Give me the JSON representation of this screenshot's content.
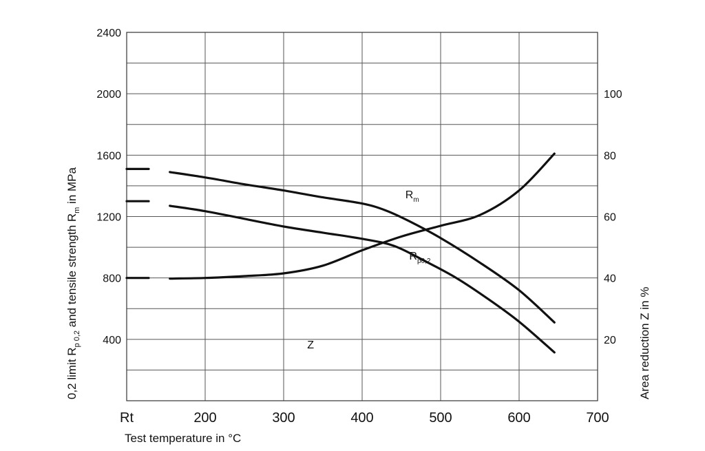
{
  "chart_data": {
    "type": "line",
    "title": "",
    "xlabel": "Test temperature in °C",
    "ylabel_left": "0,2 limit R p 0,2 and tensile strength R m in MPa",
    "ylabel_left_parts": {
      "a": "0,2 limit R",
      "a_sub": "p 0,2",
      "b": " and tensile strength R",
      "b_sub": "m",
      "c": " in MPa"
    },
    "ylabel_right": "Area reduction Z in %",
    "xlim": [
      100,
      700
    ],
    "ylim_left": [
      0,
      2400
    ],
    "ylim_right": [
      0,
      120
    ],
    "x_ticks": [
      {
        "value": 100,
        "label": "Rt"
      },
      {
        "value": 200,
        "label": "200"
      },
      {
        "value": 300,
        "label": "300"
      },
      {
        "value": 400,
        "label": "400"
      },
      {
        "value": 500,
        "label": "500"
      },
      {
        "value": 600,
        "label": "600"
      },
      {
        "value": 700,
        "label": "700"
      }
    ],
    "y_ticks_left": [
      {
        "value": 400,
        "label": "400"
      },
      {
        "value": 800,
        "label": "800"
      },
      {
        "value": 1200,
        "label": "1200"
      },
      {
        "value": 1600,
        "label": "1600"
      },
      {
        "value": 2000,
        "label": "2000"
      },
      {
        "value": 2400,
        "label": "2400"
      }
    ],
    "y_ticks_right": [
      {
        "value": 20,
        "label": "20"
      },
      {
        "value": 40,
        "label": "40"
      },
      {
        "value": 60,
        "label": "60"
      },
      {
        "value": 80,
        "label": "80"
      },
      {
        "value": 100,
        "label": "100"
      }
    ],
    "grid": true,
    "series": [
      {
        "name": "R",
        "label_sub": "m",
        "axis": "left",
        "rt_value": 1510,
        "x": [
          155,
          200,
          250,
          300,
          350,
          400,
          430,
          460,
          500,
          550,
          600,
          645
        ],
        "values": [
          1490,
          1455,
          1410,
          1370,
          1325,
          1285,
          1240,
          1170,
          1060,
          900,
          720,
          510
        ]
      },
      {
        "name": "R",
        "label_sub": "p0,2",
        "axis": "left",
        "rt_value": 1300,
        "x": [
          155,
          200,
          250,
          300,
          350,
          400,
          440,
          480,
          520,
          560,
          600,
          645
        ],
        "values": [
          1270,
          1235,
          1185,
          1135,
          1095,
          1055,
          1010,
          910,
          800,
          665,
          515,
          315
        ]
      },
      {
        "name": "Z",
        "axis": "right",
        "rt_value": 40,
        "x": [
          155,
          200,
          250,
          300,
          350,
          400,
          450,
          500,
          550,
          600,
          645
        ],
        "values": [
          39.8,
          40,
          40.6,
          41.5,
          44,
          49,
          53.5,
          57,
          60.5,
          68.5,
          80.5
        ]
      }
    ],
    "curve_labels": [
      {
        "series": 0,
        "x": 455,
        "y": 1320
      },
      {
        "series": 1,
        "x": 460,
        "y": 920
      },
      {
        "series": 2,
        "x": 330,
        "y": 340
      }
    ]
  }
}
